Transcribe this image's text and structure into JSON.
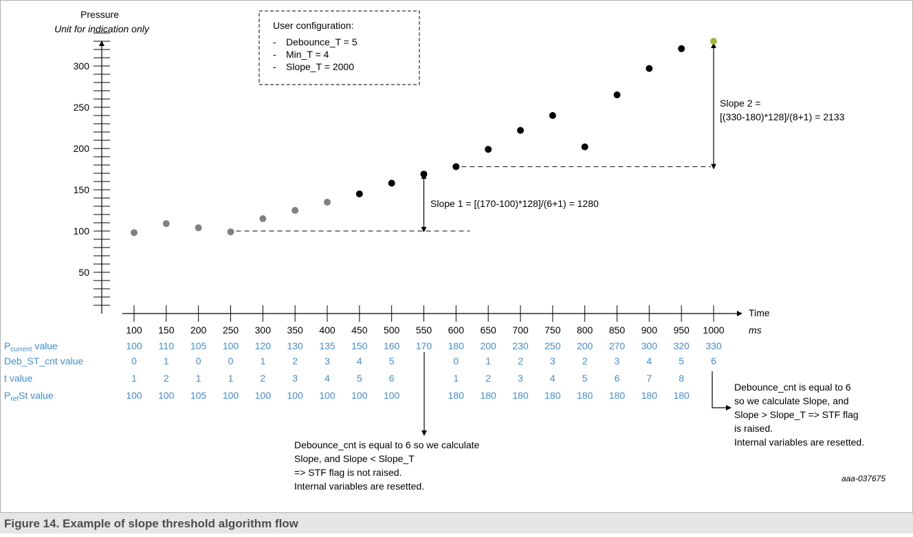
{
  "chart_data": {
    "type": "scatter",
    "title": "Figure 14.  Example of slope threshold algorithm flow",
    "figure_id": "aaa-037675",
    "ylabel": "Pressure",
    "ylabel_sub": "Unit for indication only",
    "xlabel": "Time",
    "xlabel_unit": "ms",
    "ylim": [
      0,
      350
    ],
    "xlim": [
      50,
      1050
    ],
    "y_ticks": [
      50,
      100,
      150,
      200,
      250,
      300
    ],
    "x_ticks": [
      100,
      150,
      200,
      250,
      300,
      350,
      400,
      450,
      500,
      550,
      600,
      650,
      700,
      750,
      800,
      850,
      900,
      950,
      1000
    ],
    "points": [
      {
        "x": 100,
        "y": 98,
        "color": "#808080"
      },
      {
        "x": 150,
        "y": 109,
        "color": "#808080"
      },
      {
        "x": 200,
        "y": 104,
        "color": "#808080"
      },
      {
        "x": 250,
        "y": 99,
        "color": "#808080"
      },
      {
        "x": 300,
        "y": 115,
        "color": "#808080"
      },
      {
        "x": 350,
        "y": 125,
        "color": "#808080"
      },
      {
        "x": 400,
        "y": 135,
        "color": "#808080"
      },
      {
        "x": 450,
        "y": 145,
        "color": "#000000"
      },
      {
        "x": 500,
        "y": 158,
        "color": "#000000"
      },
      {
        "x": 550,
        "y": 169,
        "color": "#000000"
      },
      {
        "x": 600,
        "y": 178,
        "color": "#000000"
      },
      {
        "x": 650,
        "y": 199,
        "color": "#000000"
      },
      {
        "x": 700,
        "y": 222,
        "color": "#000000"
      },
      {
        "x": 750,
        "y": 240,
        "color": "#000000"
      },
      {
        "x": 800,
        "y": 202,
        "color": "#000000"
      },
      {
        "x": 850,
        "y": 265,
        "color": "#000000"
      },
      {
        "x": 900,
        "y": 297,
        "color": "#000000"
      },
      {
        "x": 950,
        "y": 321,
        "color": "#000000"
      },
      {
        "x": 1000,
        "y": 330,
        "color": "#99b93f"
      }
    ],
    "config_box": {
      "title": "User configuration:",
      "items": [
        "Debounce_T = 5",
        "Min_T = 4",
        "Slope_T = 2000"
      ]
    },
    "slope1": {
      "label": "Slope 1 = [(170-100)*128]/(6+1) = 1280",
      "x": 550,
      "y_from": 100,
      "y_to": 170,
      "dash_x_from": 250,
      "dash_x_to": 600
    },
    "slope2": {
      "label_line1": "Slope 2 =",
      "label_line2": "[(330-180)*128]/(8+1) = 2133",
      "x": 1000,
      "y_from": 178,
      "y_to": 330,
      "dash_x_from": 600,
      "dash_x_to": 1000
    },
    "table": {
      "color": "#3e8ede",
      "rows": [
        {
          "label_main": "P",
          "label_sub": "current",
          "label_rest": " value",
          "values": [
            "100",
            "110",
            "105",
            "100",
            "120",
            "130",
            "135",
            "150",
            "160",
            "170",
            "180",
            "200",
            "230",
            "250",
            "200",
            "270",
            "300",
            "320",
            "330"
          ]
        },
        {
          "label_main": "Deb_ST_cnt value",
          "label_sub": "",
          "label_rest": "",
          "values": [
            "0",
            "1",
            "0",
            "0",
            "1",
            "2",
            "3",
            "4",
            "5",
            "",
            "0",
            "1",
            "2",
            "3",
            "2",
            "3",
            "4",
            "5",
            "6"
          ]
        },
        {
          "label_main": "t value",
          "label_sub": "",
          "label_rest": "",
          "values": [
            "1",
            "2",
            "1",
            "1",
            "2",
            "3",
            "4",
            "5",
            "6",
            "",
            "1",
            "2",
            "3",
            "4",
            "5",
            "6",
            "7",
            "8",
            ""
          ]
        },
        {
          "label_main": "P",
          "label_sub": "ref",
          "label_rest": "St value",
          "values": [
            "100",
            "100",
            "105",
            "100",
            "100",
            "100",
            "100",
            "100",
            "100",
            "",
            "180",
            "180",
            "180",
            "180",
            "180",
            "180",
            "180",
            "180",
            ""
          ]
        }
      ]
    },
    "note1": [
      "Debounce_cnt is equal to 6 so we calculate",
      "Slope, and Slope < Slope_T",
      "=> STF flag is not raised.",
      "Internal variables are resetted."
    ],
    "note2": [
      "Debounce_cnt is equal to 6",
      "so we calculate Slope, and",
      "Slope > Slope_T => STF flag",
      "is raised.",
      "Internal variables are resetted."
    ]
  }
}
